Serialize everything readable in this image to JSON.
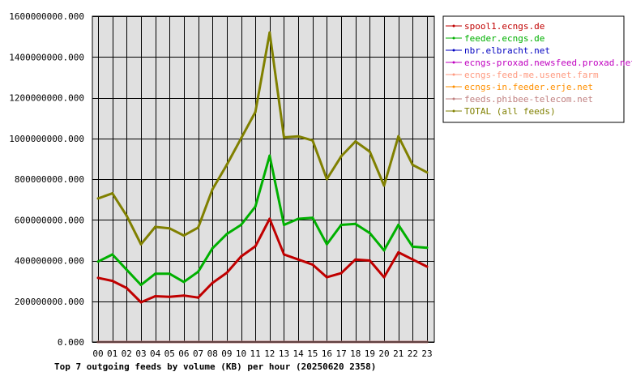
{
  "chart_data": {
    "type": "line",
    "title": "Top 7 outgoing feeds by volume (KB) per hour (20250620 2358)",
    "categories": [
      "00",
      "01",
      "02",
      "03",
      "04",
      "05",
      "06",
      "07",
      "08",
      "09",
      "10",
      "11",
      "12",
      "13",
      "14",
      "15",
      "16",
      "17",
      "18",
      "19",
      "20",
      "21",
      "22",
      "23"
    ],
    "ylim": [
      0,
      1600000000
    ],
    "yticks": [
      0,
      200000000,
      400000000,
      600000000,
      800000000,
      1000000000,
      1200000000,
      1400000000,
      1600000000
    ],
    "ytick_labels": [
      "0.000",
      "200000000.000",
      "400000000.000",
      "600000000.000",
      "800000000.000",
      "1000000000.000",
      "1200000000.000",
      "1400000000.000",
      "1600000000.000"
    ],
    "grid": true,
    "legend_position": "right",
    "series": [
      {
        "name": "spool1.ecngs.de",
        "color": "#c00000",
        "values": [
          315000000,
          300000000,
          265000000,
          195000000,
          225000000,
          222000000,
          228000000,
          218000000,
          290000000,
          340000000,
          420000000,
          470000000,
          605000000,
          430000000,
          405000000,
          380000000,
          318000000,
          338000000,
          405000000,
          400000000,
          318000000,
          440000000,
          405000000,
          370000000
        ]
      },
      {
        "name": "feeder.ecngs.de",
        "color": "#00b000",
        "values": [
          395000000,
          430000000,
          355000000,
          280000000,
          335000000,
          335000000,
          295000000,
          345000000,
          460000000,
          530000000,
          575000000,
          665000000,
          915000000,
          575000000,
          605000000,
          610000000,
          480000000,
          575000000,
          580000000,
          535000000,
          450000000,
          575000000,
          468000000,
          463000000
        ]
      },
      {
        "name": "nbr.elbracht.net",
        "color": "#0000c0",
        "values": [
          0,
          0,
          0,
          0,
          0,
          0,
          0,
          0,
          0,
          0,
          0,
          0,
          0,
          0,
          0,
          0,
          0,
          0,
          0,
          0,
          0,
          0,
          0,
          0
        ]
      },
      {
        "name": "ecngs-proxad.newsfeed.proxad.net",
        "color": "#c000c0",
        "values": [
          0,
          0,
          0,
          0,
          0,
          0,
          0,
          0,
          0,
          0,
          0,
          0,
          0,
          0,
          0,
          0,
          0,
          0,
          0,
          0,
          0,
          0,
          0,
          0
        ]
      },
      {
        "name": "ecngs-feed-me.usenet.farm",
        "color": "#ff9a80",
        "values": [
          0,
          0,
          0,
          0,
          0,
          0,
          0,
          0,
          0,
          0,
          0,
          0,
          0,
          0,
          0,
          0,
          0,
          0,
          0,
          0,
          0,
          0,
          0,
          0
        ]
      },
      {
        "name": "ecngs-in.feeder.erje.net",
        "color": "#ff9000",
        "values": [
          0,
          0,
          0,
          0,
          0,
          0,
          0,
          0,
          0,
          0,
          0,
          0,
          0,
          0,
          0,
          0,
          0,
          0,
          0,
          0,
          0,
          0,
          0,
          0
        ]
      },
      {
        "name": "feeds.phibee-telecom.net",
        "color": "#c08080",
        "values": [
          0,
          0,
          0,
          0,
          0,
          0,
          0,
          0,
          0,
          0,
          0,
          0,
          0,
          0,
          0,
          0,
          0,
          0,
          0,
          0,
          0,
          0,
          0,
          0
        ]
      },
      {
        "name": "TOTAL (all feeds)",
        "color": "#808000",
        "values": [
          705000000,
          730000000,
          620000000,
          480000000,
          565000000,
          558000000,
          523000000,
          562000000,
          750000000,
          870000000,
          1000000000,
          1130000000,
          1520000000,
          1005000000,
          1010000000,
          990000000,
          800000000,
          912000000,
          985000000,
          935000000,
          768000000,
          1010000000,
          870000000,
          833000000
        ]
      }
    ]
  }
}
